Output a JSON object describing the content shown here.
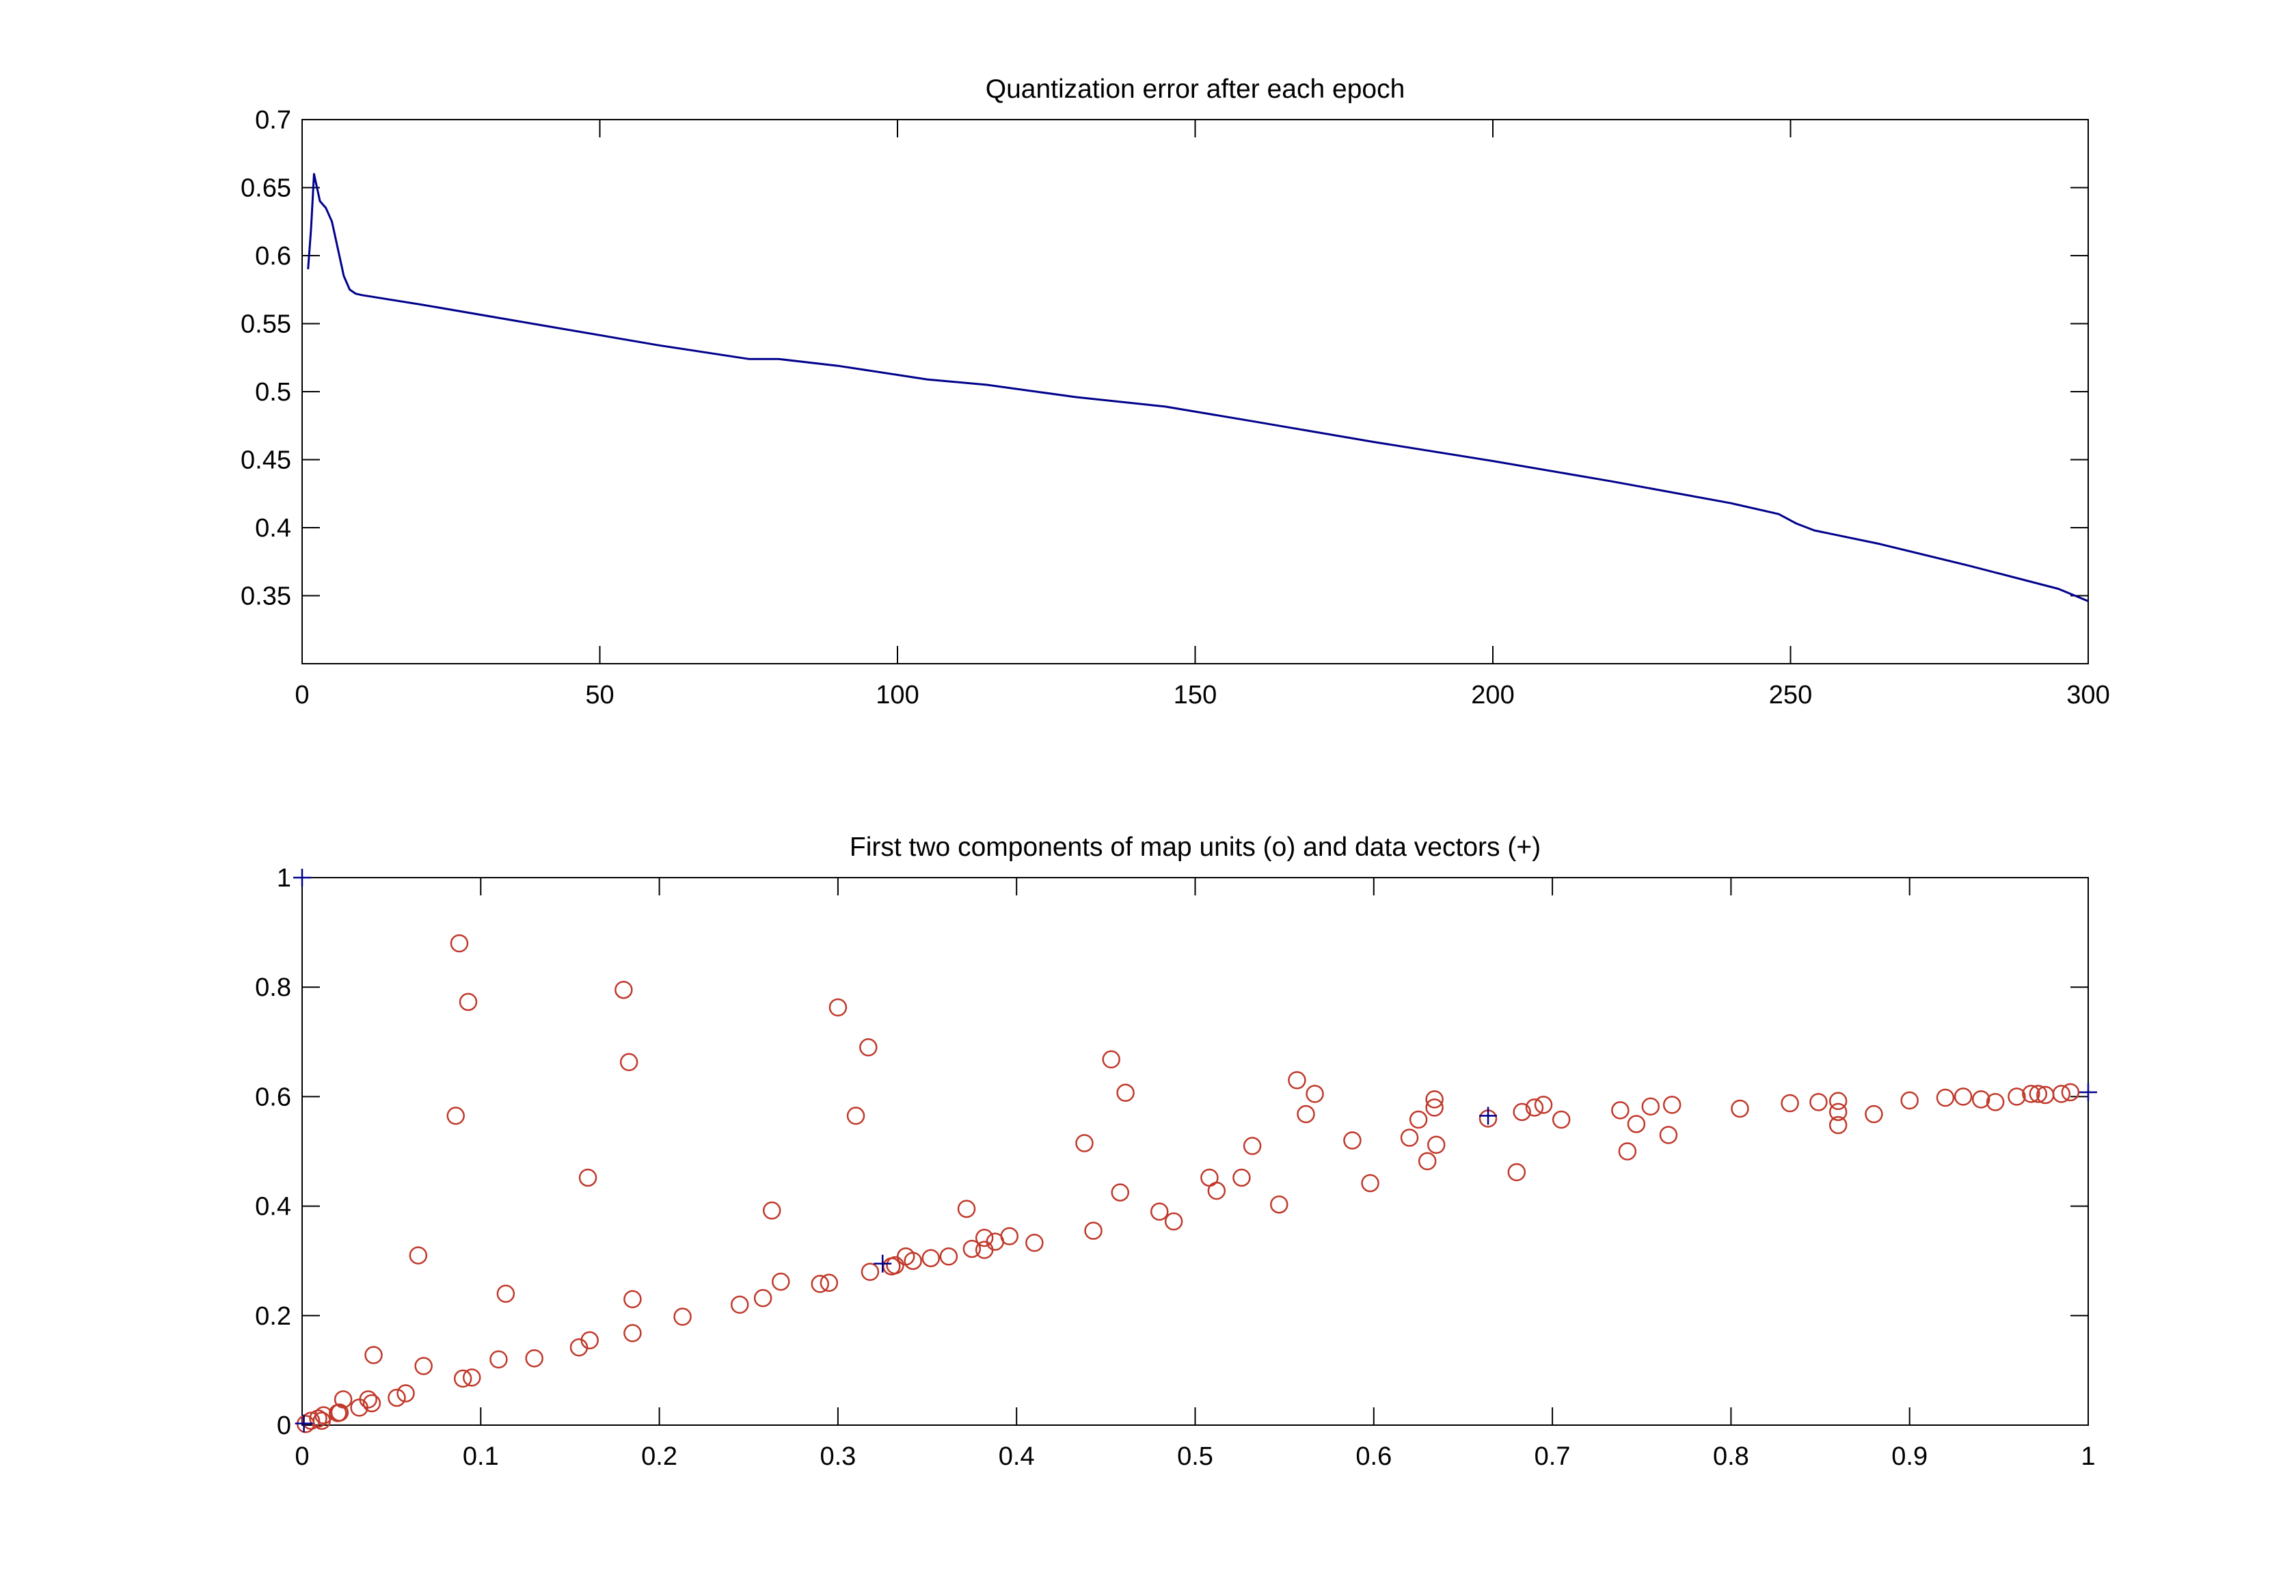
{
  "chart_data": [
    {
      "type": "line",
      "title": "Quantization error after each epoch",
      "xlabel": "",
      "ylabel": "",
      "xlim": [
        0,
        300
      ],
      "ylim": [
        0.3,
        0.7
      ],
      "xticks": [
        0,
        50,
        100,
        150,
        200,
        250,
        300
      ],
      "xtick_labels": [
        "0",
        "50",
        "100",
        "150",
        "200",
        "250",
        "300"
      ],
      "yticks": [
        0.35,
        0.4,
        0.45,
        0.5,
        0.55,
        0.6,
        0.65,
        0.7
      ],
      "ytick_labels": [
        "0.35",
        "0.4",
        "0.45",
        "0.5",
        "0.55",
        "0.6",
        "0.65",
        "0.7"
      ],
      "grid": false,
      "series": [
        {
          "color": "#00008b",
          "x": [
            1,
            1.5,
            2,
            3,
            4,
            5,
            6,
            7,
            8,
            9,
            10,
            20,
            40,
            60,
            75,
            80,
            90,
            105,
            115,
            130,
            145,
            160,
            180,
            200,
            220,
            240,
            248,
            251,
            254,
            265,
            280,
            295,
            300
          ],
          "y": [
            0.59,
            0.62,
            0.66,
            0.64,
            0.635,
            0.625,
            0.605,
            0.585,
            0.575,
            0.572,
            0.571,
            0.564,
            0.549,
            0.534,
            0.524,
            0.524,
            0.519,
            0.509,
            0.505,
            0.496,
            0.489,
            0.478,
            0.463,
            0.449,
            0.434,
            0.418,
            0.41,
            0.403,
            0.398,
            0.388,
            0.372,
            0.355,
            0.346
          ]
        }
      ]
    },
    {
      "type": "scatter",
      "title": "First two components of map units (o) and data vectors (+)",
      "xlabel": "",
      "ylabel": "",
      "xlim": [
        0,
        1
      ],
      "ylim": [
        0,
        1
      ],
      "xticks": [
        0,
        0.1,
        0.2,
        0.3,
        0.4,
        0.5,
        0.6,
        0.7,
        0.8,
        0.9,
        1
      ],
      "xtick_labels": [
        "0",
        "0.1",
        "0.2",
        "0.3",
        "0.4",
        "0.5",
        "0.6",
        "0.7",
        "0.8",
        "0.9",
        "1"
      ],
      "yticks": [
        0,
        0.2,
        0.4,
        0.6,
        0.8,
        1
      ],
      "ytick_labels": [
        "0",
        "0.2",
        "0.4",
        "0.6",
        "0.8",
        "1"
      ],
      "grid": false,
      "series": [
        {
          "marker": "o",
          "color": "#c0392b",
          "points": [
            [
              0.002,
              0.002
            ],
            [
              0.005,
              0.008
            ],
            [
              0.009,
              0.012
            ],
            [
              0.012,
              0.018
            ],
            [
              0.011,
              0.008
            ],
            [
              0.02,
              0.022
            ],
            [
              0.021,
              0.023
            ],
            [
              0.023,
              0.047
            ],
            [
              0.032,
              0.032
            ],
            [
              0.037,
              0.047
            ],
            [
              0.039,
              0.04
            ],
            [
              0.04,
              0.128
            ],
            [
              0.053,
              0.05
            ],
            [
              0.058,
              0.058
            ],
            [
              0.065,
              0.31
            ],
            [
              0.068,
              0.108
            ],
            [
              0.086,
              0.565
            ],
            [
              0.088,
              0.88
            ],
            [
              0.09,
              0.085
            ],
            [
              0.093,
              0.773
            ],
            [
              0.095,
              0.087
            ],
            [
              0.11,
              0.12
            ],
            [
              0.114,
              0.24
            ],
            [
              0.13,
              0.122
            ],
            [
              0.155,
              0.142
            ],
            [
              0.16,
              0.452
            ],
            [
              0.161,
              0.155
            ],
            [
              0.18,
              0.795
            ],
            [
              0.183,
              0.663
            ],
            [
              0.185,
              0.23
            ],
            [
              0.185,
              0.168
            ],
            [
              0.213,
              0.198
            ],
            [
              0.245,
              0.22
            ],
            [
              0.258,
              0.232
            ],
            [
              0.263,
              0.392
            ],
            [
              0.268,
              0.262
            ],
            [
              0.29,
              0.258
            ],
            [
              0.295,
              0.26
            ],
            [
              0.3,
              0.763
            ],
            [
              0.31,
              0.565
            ],
            [
              0.317,
              0.69
            ],
            [
              0.318,
              0.28
            ],
            [
              0.33,
              0.29
            ],
            [
              0.332,
              0.292
            ],
            [
              0.338,
              0.308
            ],
            [
              0.342,
              0.3
            ],
            [
              0.352,
              0.305
            ],
            [
              0.362,
              0.308
            ],
            [
              0.372,
              0.395
            ],
            [
              0.375,
              0.322
            ],
            [
              0.382,
              0.32
            ],
            [
              0.382,
              0.342
            ],
            [
              0.388,
              0.335
            ],
            [
              0.396,
              0.345
            ],
            [
              0.41,
              0.333
            ],
            [
              0.438,
              0.515
            ],
            [
              0.443,
              0.355
            ],
            [
              0.453,
              0.668
            ],
            [
              0.458,
              0.425
            ],
            [
              0.461,
              0.607
            ],
            [
              0.48,
              0.39
            ],
            [
              0.488,
              0.372
            ],
            [
              0.508,
              0.452
            ],
            [
              0.512,
              0.428
            ],
            [
              0.526,
              0.452
            ],
            [
              0.532,
              0.51
            ],
            [
              0.547,
              0.403
            ],
            [
              0.557,
              0.63
            ],
            [
              0.562,
              0.568
            ],
            [
              0.567,
              0.605
            ],
            [
              0.588,
              0.52
            ],
            [
              0.598,
              0.442
            ],
            [
              0.62,
              0.525
            ],
            [
              0.625,
              0.558
            ],
            [
              0.63,
              0.482
            ],
            [
              0.634,
              0.58
            ],
            [
              0.634,
              0.595
            ],
            [
              0.635,
              0.512
            ],
            [
              0.664,
              0.56
            ],
            [
              0.68,
              0.462
            ],
            [
              0.683,
              0.572
            ],
            [
              0.69,
              0.58
            ],
            [
              0.695,
              0.585
            ],
            [
              0.705,
              0.558
            ],
            [
              0.738,
              0.575
            ],
            [
              0.742,
              0.5
            ],
            [
              0.747,
              0.55
            ],
            [
              0.755,
              0.582
            ],
            [
              0.765,
              0.53
            ],
            [
              0.767,
              0.585
            ],
            [
              0.805,
              0.578
            ],
            [
              0.833,
              0.588
            ],
            [
              0.849,
              0.59
            ],
            [
              0.86,
              0.548
            ],
            [
              0.86,
              0.572
            ],
            [
              0.86,
              0.592
            ],
            [
              0.88,
              0.568
            ],
            [
              0.9,
              0.593
            ],
            [
              0.92,
              0.598
            ],
            [
              0.93,
              0.6
            ],
            [
              0.94,
              0.595
            ],
            [
              0.948,
              0.59
            ],
            [
              0.96,
              0.6
            ],
            [
              0.968,
              0.605
            ],
            [
              0.972,
              0.605
            ],
            [
              0.976,
              0.603
            ],
            [
              0.985,
              0.605
            ],
            [
              0.99,
              0.608
            ]
          ]
        },
        {
          "marker": "+",
          "color": "#00008b",
          "points": [
            [
              0,
              1
            ],
            [
              0.325,
              0.295
            ],
            [
              0.664,
              0.565
            ],
            [
              1,
              0.608
            ],
            [
              0.001,
              0.003
            ]
          ]
        }
      ]
    }
  ]
}
